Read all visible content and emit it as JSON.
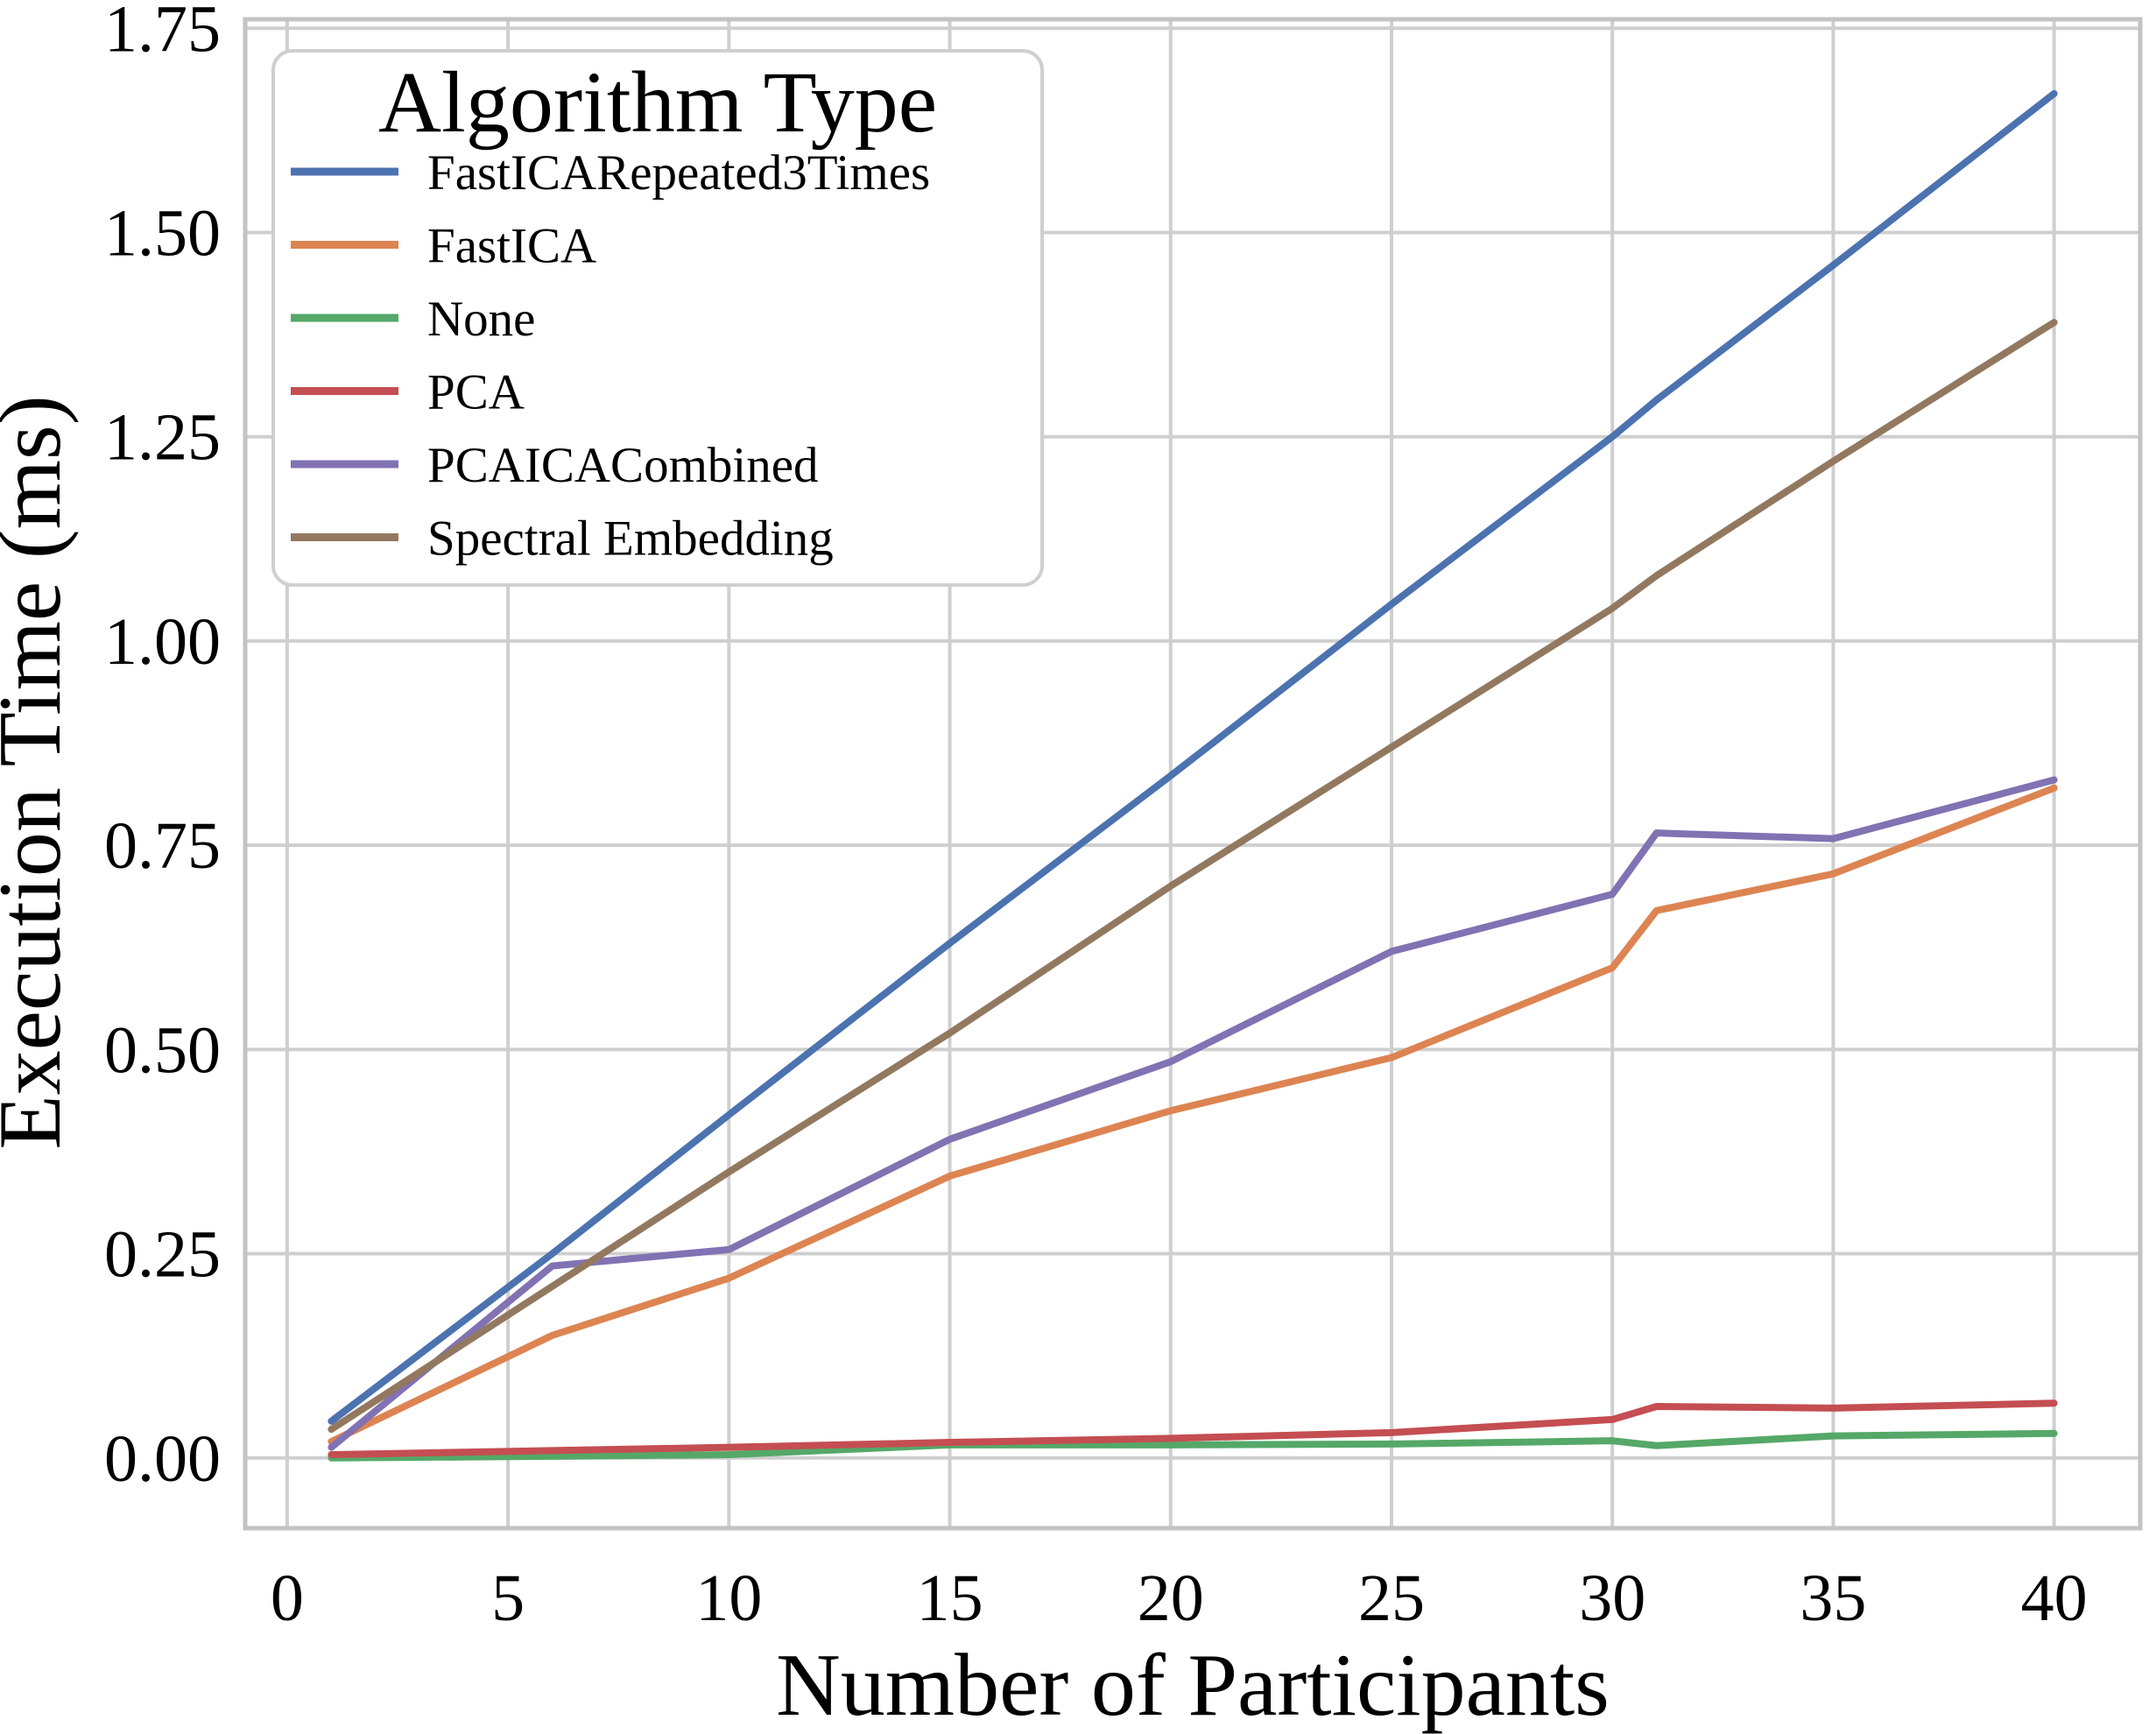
{
  "chart_data": {
    "type": "line",
    "title": "",
    "xlabel": "Number of Participants",
    "ylabel": "Execution Time (ms)",
    "x": [
      1,
      6,
      10,
      15,
      20,
      25,
      30,
      31,
      35,
      40
    ],
    "series": [
      {
        "name": "FastICARepeated3Times",
        "color": "#4C72B0",
        "values": [
          0.045,
          0.25,
          0.42,
          0.63,
          0.835,
          1.045,
          1.25,
          1.295,
          1.46,
          1.67
        ]
      },
      {
        "name": "FastICA",
        "color": "#DD8452",
        "values": [
          0.02,
          0.15,
          0.22,
          0.345,
          0.425,
          0.49,
          0.6,
          0.67,
          0.715,
          0.82
        ]
      },
      {
        "name": "None",
        "color": "#55A868",
        "values": [
          0.0,
          0.002,
          0.004,
          0.016,
          0.016,
          0.017,
          0.021,
          0.015,
          0.027,
          0.03
        ]
      },
      {
        "name": "PCA",
        "color": "#C44E52",
        "values": [
          0.004,
          0.009,
          0.013,
          0.019,
          0.024,
          0.031,
          0.047,
          0.063,
          0.061,
          0.067
        ]
      },
      {
        "name": "PCAICACombined",
        "color": "#8172B3",
        "values": [
          0.013,
          0.235,
          0.255,
          0.39,
          0.485,
          0.62,
          0.69,
          0.765,
          0.758,
          0.83
        ]
      },
      {
        "name": "Spectral Embedding",
        "color": "#937860",
        "values": [
          0.035,
          0.21,
          0.35,
          0.52,
          0.7,
          0.87,
          1.04,
          1.08,
          1.22,
          1.39
        ]
      }
    ],
    "legend": {
      "title": "Algorithm Type",
      "position": "upper left"
    },
    "xticks": [
      0,
      5,
      10,
      15,
      20,
      25,
      30,
      35,
      40
    ],
    "xtick_labels": [
      "0",
      "5",
      "10",
      "15",
      "20",
      "25",
      "30",
      "35",
      "40"
    ],
    "yticks": [
      0.0,
      0.25,
      0.5,
      0.75,
      1.0,
      1.25,
      1.5,
      1.75
    ],
    "ytick_labels": [
      "0.00",
      "0.25",
      "0.50",
      "0.75",
      "1.00",
      "1.25",
      "1.50",
      "1.75"
    ],
    "xlim": [
      -0.95,
      41.95
    ],
    "ylim": [
      -0.086,
      1.761
    ],
    "grid": true,
    "grid_color": "#cfcfcf",
    "spine_color": "#c3c3c3",
    "text_color": "#000000",
    "background": "#ffffff"
  }
}
